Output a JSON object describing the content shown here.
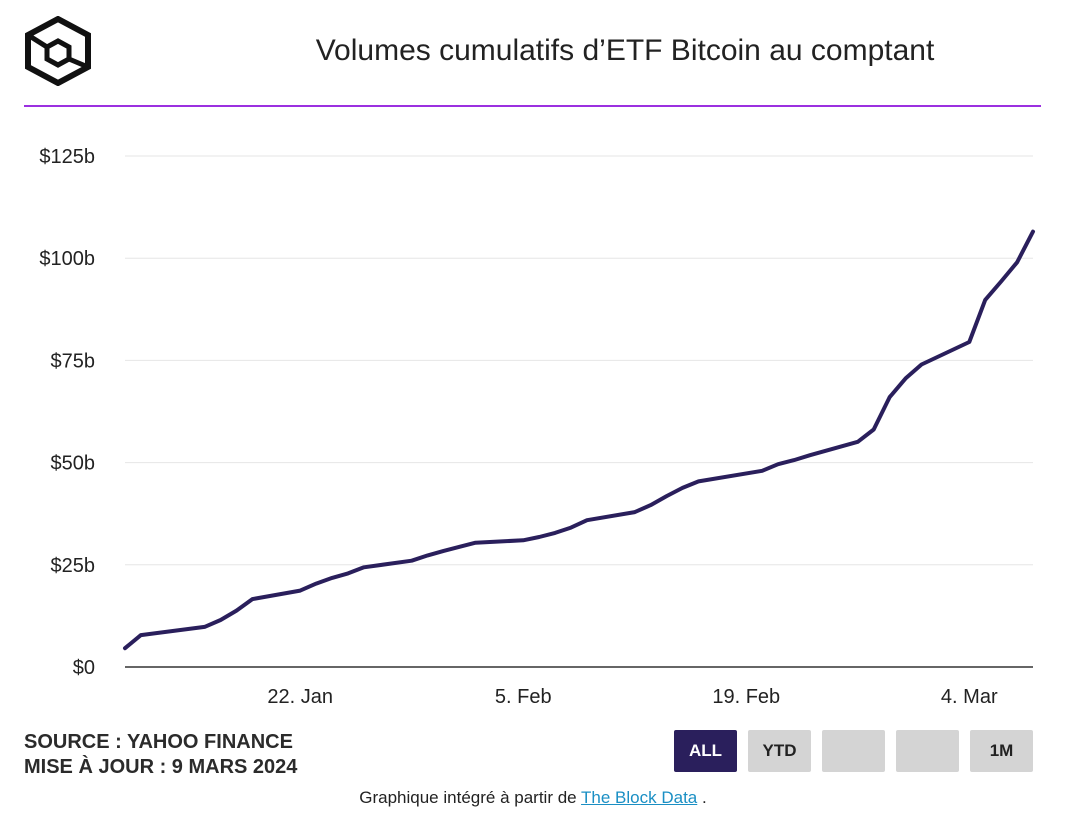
{
  "title": "Volumes cumulatifs d’ETF Bitcoin au comptant",
  "source_line": "SOURCE : YAHOO FINANCE",
  "updated_line": "MISE À JOUR : 9 MARS 2024",
  "range_buttons": [
    "ALL",
    "YTD",
    "",
    "",
    "1M"
  ],
  "active_range": "ALL",
  "embed_prefix": "Graphique intégré à partir de",
  "embed_link": "The Block Data",
  "embed_suffix": ".",
  "colors": {
    "accent_rule": "#9b30e0",
    "line": "#2a1f5c",
    "active_button": "#2a1f5c"
  },
  "chart_data": {
    "type": "line",
    "title": "Volumes cumulatifs d’ETF Bitcoin au comptant",
    "xlabel": "",
    "ylabel": "",
    "x_ticks": [
      "22. Jan",
      "5. Feb",
      "19. Feb",
      "4. Mar"
    ],
    "y_ticks": [
      "$0",
      "$25b",
      "$50b",
      "$75b",
      "$100b",
      "$125b"
    ],
    "ylim": [
      0,
      125
    ],
    "grid": true,
    "legend": "none",
    "series": [
      {
        "x": [
          "2024-01-11",
          "2024-01-12",
          "2024-01-16",
          "2024-01-17",
          "2024-01-18",
          "2024-01-19",
          "2024-01-22",
          "2024-01-23",
          "2024-01-24",
          "2024-01-25",
          "2024-01-26",
          "2024-01-29",
          "2024-01-30",
          "2024-01-31",
          "2024-02-01",
          "2024-02-02",
          "2024-02-05",
          "2024-02-06",
          "2024-02-07",
          "2024-02-08",
          "2024-02-09",
          "2024-02-12",
          "2024-02-13",
          "2024-02-14",
          "2024-02-15",
          "2024-02-16",
          "2024-02-20",
          "2024-02-21",
          "2024-02-22",
          "2024-02-23",
          "2024-02-26",
          "2024-02-27",
          "2024-02-28",
          "2024-02-29",
          "2024-03-01",
          "2024-03-04",
          "2024-03-05",
          "2024-03-06",
          "2024-03-07",
          "2024-03-08"
        ],
        "values": [
          4.6,
          7.8,
          9.8,
          11.5,
          13.8,
          16.6,
          18.7,
          20.4,
          21.8,
          22.9,
          24.4,
          26.0,
          27.3,
          28.4,
          29.4,
          30.4,
          31.0,
          31.8,
          32.8,
          34.1,
          35.9,
          37.9,
          39.6,
          41.8,
          43.8,
          45.4,
          48.0,
          49.6,
          50.6,
          51.8,
          55.1,
          58.1,
          66.0,
          70.6,
          74.0,
          79.5,
          89.8,
          94.3,
          99.0,
          106.5
        ]
      }
    ]
  }
}
